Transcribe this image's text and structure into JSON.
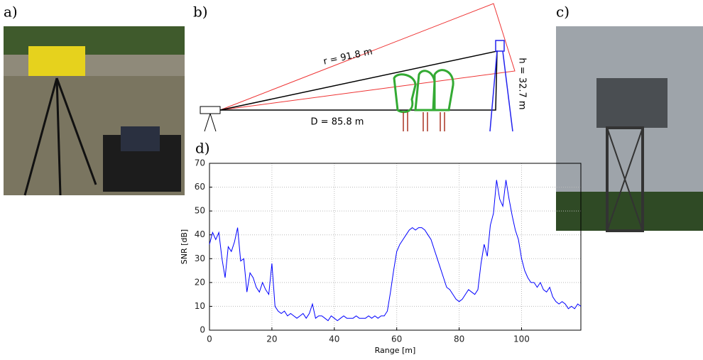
{
  "panels": {
    "a": "a)",
    "b": "b)",
    "c": "c)",
    "d": "d)"
  },
  "diagram": {
    "r_label": "r = 91.8 m",
    "d_label": "D = 85.8 m",
    "h_label": "h = 32.7 m"
  },
  "chart_data": {
    "type": "line",
    "xlabel": "Range [m]",
    "ylabel": "SNR [dB]",
    "color": "#0000ff",
    "grid": true,
    "xlim": [
      0,
      119
    ],
    "ylim": [
      0,
      70
    ],
    "xticks": [
      0,
      20,
      40,
      60,
      80,
      100
    ],
    "yticks": [
      0,
      10,
      20,
      30,
      40,
      50,
      60,
      70
    ],
    "x": [
      0,
      1,
      2,
      3,
      4,
      5,
      6,
      7,
      8,
      9,
      10,
      11,
      12,
      13,
      14,
      15,
      16,
      17,
      18,
      19,
      20,
      21,
      22,
      23,
      24,
      25,
      26,
      27,
      28,
      29,
      30,
      31,
      32,
      33,
      34,
      35,
      36,
      37,
      38,
      39,
      40,
      41,
      42,
      43,
      44,
      45,
      46,
      47,
      48,
      49,
      50,
      51,
      52,
      53,
      54,
      55,
      56,
      57,
      58,
      59,
      60,
      61,
      62,
      63,
      64,
      65,
      66,
      67,
      68,
      69,
      70,
      71,
      72,
      73,
      74,
      75,
      76,
      77,
      78,
      79,
      80,
      81,
      82,
      83,
      84,
      85,
      86,
      87,
      88,
      89,
      90,
      91,
      92,
      93,
      94,
      95,
      96,
      97,
      98,
      99,
      100,
      101,
      102,
      103,
      104,
      105,
      106,
      107,
      108,
      109,
      110,
      111,
      112,
      113,
      114,
      115,
      116,
      117,
      118,
      119
    ],
    "values": [
      36,
      41,
      38,
      41,
      30,
      22,
      35,
      33,
      37,
      43,
      29,
      30,
      16,
      24,
      22,
      18,
      16,
      20,
      17,
      15,
      28,
      10,
      8,
      7,
      8,
      6,
      7,
      6,
      5,
      6,
      7,
      5,
      7,
      11,
      5,
      6,
      6,
      5,
      4,
      6,
      5,
      4,
      5,
      6,
      5,
      5,
      5,
      6,
      5,
      5,
      5,
      6,
      5,
      6,
      5,
      6,
      6,
      8,
      16,
      25,
      33,
      36,
      38,
      40,
      42,
      43,
      42,
      43,
      43,
      42,
      40,
      38,
      34,
      30,
      26,
      22,
      18,
      17,
      15,
      13,
      12,
      13,
      15,
      17,
      16,
      15,
      17,
      28,
      36,
      31,
      44,
      49,
      63,
      55,
      52,
      63,
      55,
      48,
      42,
      38,
      30,
      25,
      22,
      20,
      20,
      18,
      20,
      17,
      16,
      18,
      14,
      12,
      11,
      12,
      11,
      9,
      10,
      9,
      11,
      10
    ]
  }
}
